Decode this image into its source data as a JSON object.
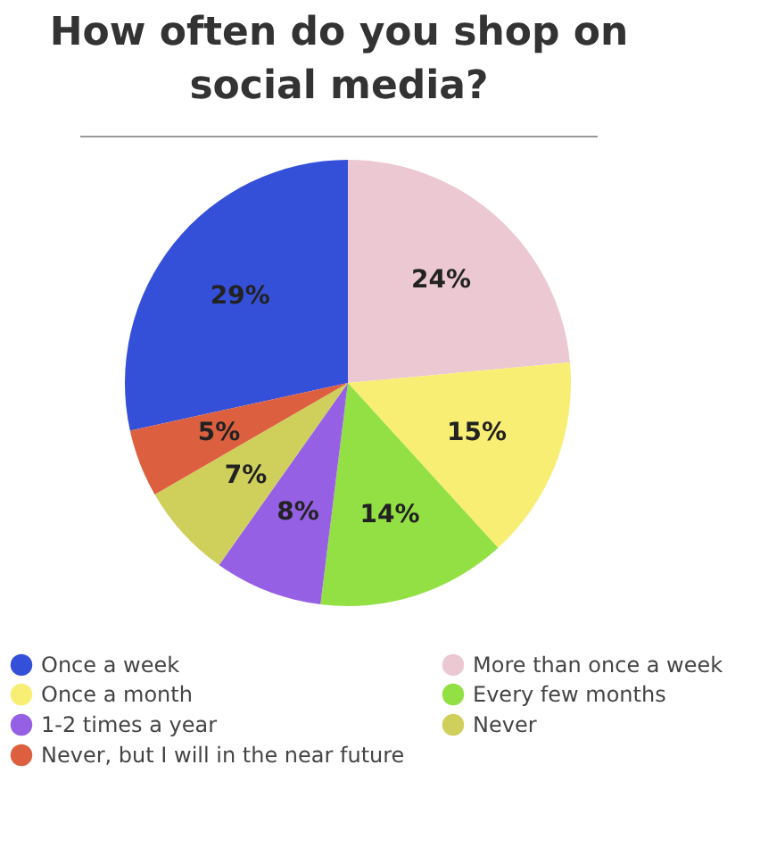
{
  "chart_data": {
    "type": "pie",
    "title": "How often do you shop on social media?",
    "categories": [
      "Once a week",
      "More than once a week",
      "Once a month",
      "Every few months",
      "1-2 times a year",
      "Never",
      "Never, but I will in the near future"
    ],
    "values": [
      29,
      24,
      15,
      14,
      8,
      7,
      5
    ],
    "colors": [
      "#3550d8",
      "#ecc8d2",
      "#f8ee74",
      "#93e044",
      "#9660e4",
      "#cfd05c",
      "#dc6040"
    ],
    "value_labels": [
      "29%",
      "24%",
      "15%",
      "14%",
      "8%",
      "7%",
      "5%"
    ],
    "legend": "bottom"
  }
}
